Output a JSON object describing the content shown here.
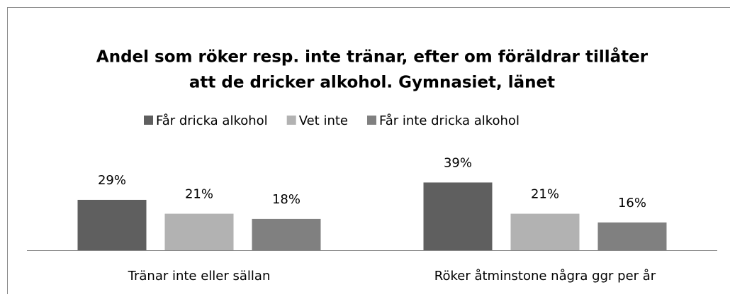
{
  "chart_data": {
    "type": "bar",
    "title": [
      "Andel som röker resp. inte tränar, efter om föräldrar tillåter",
      "att de dricker alkohol. Gymnasiet, länet"
    ],
    "categories": [
      "Tränar inte eller sällan",
      "Röker åtminstone några ggr per år"
    ],
    "series": [
      {
        "name": "Får dricka alkohol",
        "color": "#5f5f5f",
        "values": [
          29,
          39
        ],
        "value_labels": [
          "29%",
          "39%"
        ]
      },
      {
        "name": "Vet inte",
        "color": "#b2b2b2",
        "values": [
          21,
          21
        ],
        "value_labels": [
          "21%",
          "21%"
        ]
      },
      {
        "name": "Får inte dricka alkohol",
        "color": "#808080",
        "values": [
          18,
          16
        ],
        "value_labels": [
          "18%",
          "16%"
        ]
      }
    ],
    "legend": "top"
  }
}
